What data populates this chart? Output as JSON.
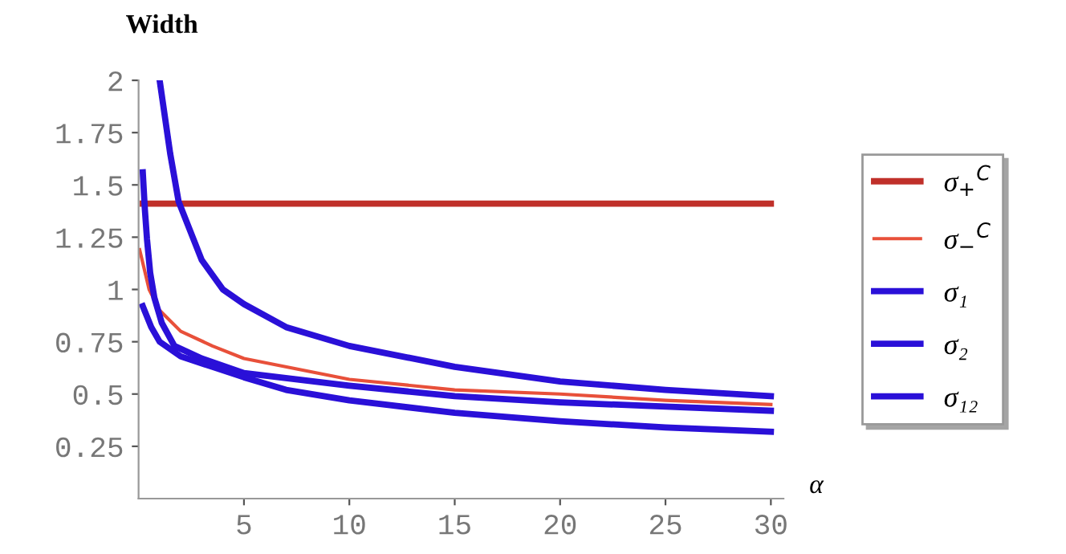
{
  "chart_data": {
    "type": "line",
    "ylabel": "Width",
    "xlabel": "α",
    "xlim": [
      0,
      30.6
    ],
    "ylim": [
      0,
      2
    ],
    "xticks": [
      5,
      10,
      15,
      20,
      25,
      30
    ],
    "yticks": [
      0.25,
      0.5,
      0.75,
      1,
      1.25,
      1.5,
      1.75,
      2
    ],
    "grid": false,
    "legend": "right",
    "line_style": "solid",
    "marker": "none",
    "series": [
      {
        "name": "σ$_{+}$$^{C}$",
        "color": "#c0302a",
        "x": [
          0.2,
          10,
          20,
          30
        ],
        "values": [
          1.41,
          1.41,
          1.41,
          1.41
        ]
      },
      {
        "name": "σ$_{−}$$^{C}$",
        "color": "#e8503a",
        "x": [
          0.05,
          0.5,
          1,
          2,
          3.5,
          5,
          10,
          15,
          20,
          25,
          30
        ],
        "values": [
          1.19,
          1.0,
          0.9,
          0.8,
          0.73,
          0.67,
          0.57,
          0.52,
          0.5,
          0.47,
          0.45
        ]
      },
      {
        "name": "σ₁",
        "color": "#2a10d8",
        "x": [
          1,
          1.5,
          1.9,
          3,
          4,
          5,
          7,
          10,
          15,
          20,
          25,
          30
        ],
        "values": [
          2,
          1.65,
          1.42,
          1.14,
          1.0,
          0.93,
          0.82,
          0.73,
          0.63,
          0.56,
          0.52,
          0.49
        ]
      },
      {
        "name": "σ₂",
        "color": "#2a10d8",
        "x": [
          0.2,
          0.3,
          0.4,
          0.55,
          0.75,
          1.1,
          1.7,
          3,
          5,
          10,
          15,
          20,
          25,
          30
        ],
        "values": [
          1.56,
          1.38,
          1.24,
          1.08,
          0.96,
          0.84,
          0.73,
          0.67,
          0.6,
          0.54,
          0.49,
          0.46,
          0.44,
          0.42
        ]
      },
      {
        "name": "σ₁₂",
        "color": "#2a10d8",
        "x": [
          0.2,
          0.6,
          1,
          2,
          3.5,
          5,
          7,
          10,
          15,
          20,
          25,
          30
        ],
        "values": [
          0.92,
          0.82,
          0.75,
          0.68,
          0.63,
          0.58,
          0.52,
          0.47,
          0.41,
          0.37,
          0.34,
          0.32
        ]
      }
    ]
  }
}
